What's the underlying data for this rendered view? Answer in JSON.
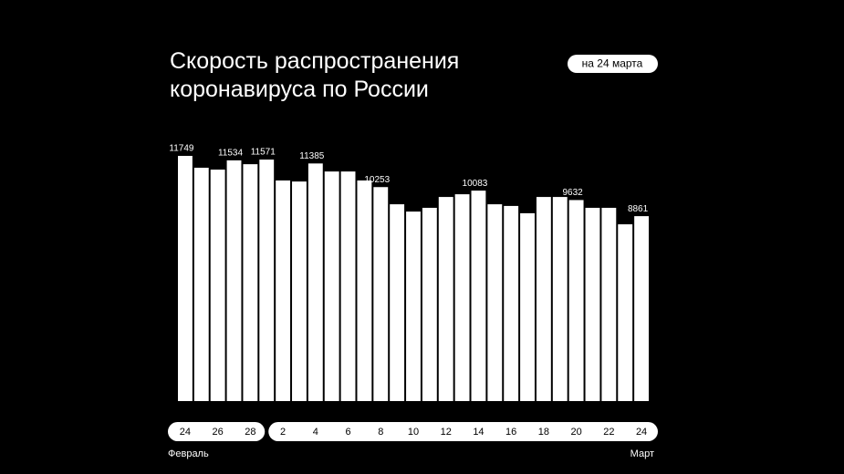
{
  "chart_data": {
    "type": "bar",
    "title": "Скорость распространения\nкоронавируса по России",
    "subtitle": "на 24 марта",
    "categories": [
      "24",
      null,
      "26",
      null,
      "28",
      null,
      "2",
      null,
      "4",
      null,
      "6",
      null,
      "8",
      null,
      "10",
      null,
      "12",
      null,
      "14",
      null,
      "16",
      null,
      "18",
      null,
      "20",
      null,
      "22",
      null,
      "24"
    ],
    "months": [
      "Февраль",
      "Март"
    ],
    "values": [
      11749,
      11180,
      11090,
      11534,
      11350,
      11571,
      10570,
      10520,
      11385,
      11000,
      11000,
      10570,
      10253,
      9430,
      9080,
      9260,
      9780,
      9910,
      10083,
      9430,
      9350,
      9000,
      9780,
      9780,
      9632,
      9260,
      9260,
      8470,
      8861
    ],
    "value_labels": [
      "11749",
      null,
      null,
      "11534",
      null,
      "11571",
      null,
      null,
      "11385",
      null,
      null,
      null,
      "10253",
      null,
      null,
      null,
      null,
      null,
      "10083",
      null,
      null,
      null,
      null,
      null,
      "9632",
      null,
      null,
      null,
      "8861"
    ],
    "color": "#ffffff",
    "ylim": [
      0,
      11749
    ]
  }
}
